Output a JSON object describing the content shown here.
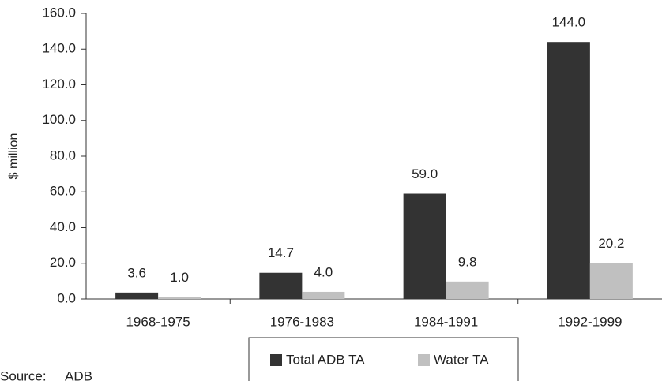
{
  "chart_data": {
    "type": "bar",
    "y_label": "$ million",
    "categories": [
      "1968-1975",
      "1976-1983",
      "1984-1991",
      "1992-1999"
    ],
    "series": [
      {
        "name": "Total ADB TA",
        "color": "#333333",
        "values": [
          3.6,
          14.7,
          59.0,
          144.0
        ],
        "value_labels": [
          "3.6",
          "14.7",
          "59.0",
          "144.0"
        ]
      },
      {
        "name": "Water TA",
        "color": "#c0c0c0",
        "values": [
          1.0,
          4.0,
          9.8,
          20.2
        ],
        "value_labels": [
          "1.0",
          "4.0",
          "9.8",
          "20.2"
        ]
      }
    ],
    "ylim": [
      0,
      160
    ],
    "yticks": [
      {
        "value": 0,
        "label": "0.0"
      },
      {
        "value": 20,
        "label": "20.0"
      },
      {
        "value": 40,
        "label": "40.0"
      },
      {
        "value": 60,
        "label": "60.0"
      },
      {
        "value": 80,
        "label": "80.0"
      },
      {
        "value": 100,
        "label": "100.0"
      },
      {
        "value": 120,
        "label": "120.0"
      },
      {
        "value": 140,
        "label": "140.0"
      },
      {
        "value": 160,
        "label": "160.0"
      }
    ],
    "source_label": "Source:",
    "source": "ADB"
  }
}
